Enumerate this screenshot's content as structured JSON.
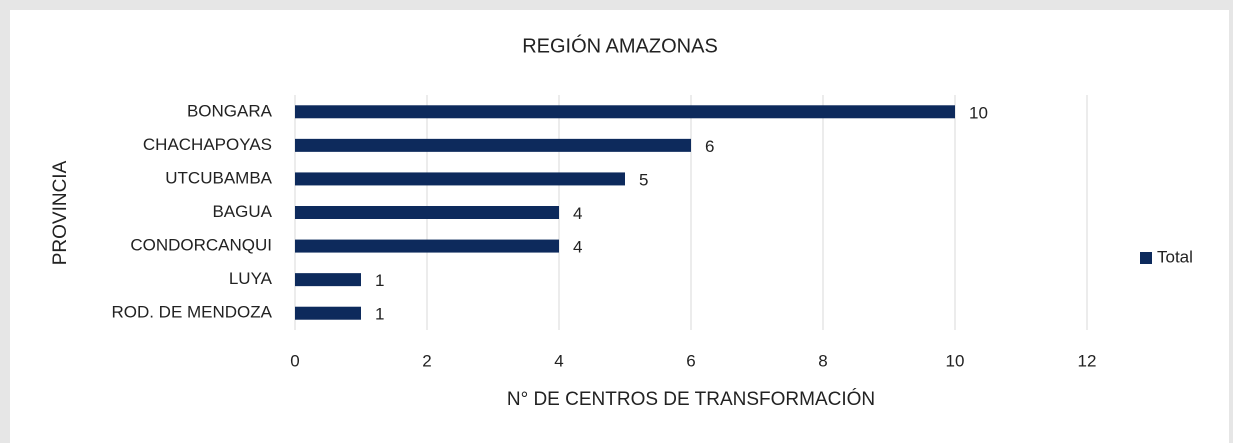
{
  "chart_data": {
    "type": "bar",
    "orientation": "horizontal",
    "title": "REGIÓN AMAZONAS",
    "x_label": "N° DE CENTROS DE TRANSFORMACIÓN",
    "y_label": "PROVINCIA",
    "categories": [
      "BONGARA",
      "CHACHAPOYAS",
      "UTCUBAMBA",
      "BAGUA",
      "CONDORCANQUI",
      "LUYA",
      "ROD. DE MENDOZA"
    ],
    "series": [
      {
        "name": "Total",
        "color": "#0d2a5c",
        "values": [
          10,
          6,
          5,
          4,
          4,
          1,
          1
        ]
      }
    ],
    "xlim": [
      0,
      12
    ],
    "xticks": [
      0,
      2,
      4,
      6,
      8,
      10,
      12
    ],
    "grid": true,
    "legend": "right"
  }
}
